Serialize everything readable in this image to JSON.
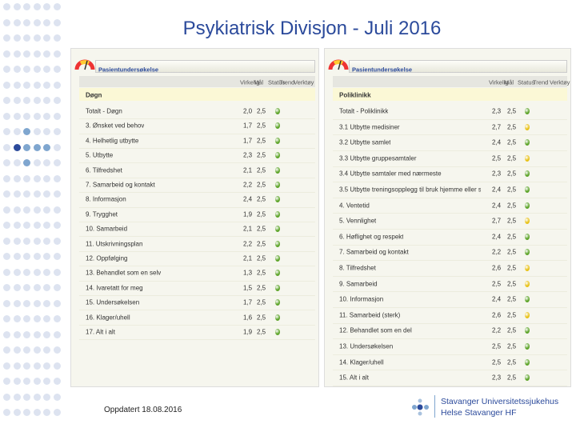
{
  "header": {
    "title": "Psykiatrisk Divisjon -  Juli 2016"
  },
  "panels": [
    {
      "app_title": "Pasientundersøkelse",
      "columns": [
        "Virkelig",
        "Mål",
        "Status",
        "Trend",
        "Verktøy"
      ],
      "section": "Døgn",
      "rows": [
        {
          "label": "Totalt - Døgn",
          "actual": "2,0",
          "target": "2,5",
          "status": "green"
        },
        {
          "label": "3. Ønsket ved behov",
          "actual": "1,7",
          "target": "2,5",
          "status": "green"
        },
        {
          "label": "4. Helhetlig utbytte",
          "actual": "1,7",
          "target": "2,5",
          "status": "green"
        },
        {
          "label": "5. Utbytte",
          "actual": "2,3",
          "target": "2,5",
          "status": "green"
        },
        {
          "label": "6. Tilfredshet",
          "actual": "2,1",
          "target": "2,5",
          "status": "green"
        },
        {
          "label": "7. Samarbeid og kontakt",
          "actual": "2,2",
          "target": "2,5",
          "status": "green"
        },
        {
          "label": "8. Informasjon",
          "actual": "2,4",
          "target": "2,5",
          "status": "green"
        },
        {
          "label": "9. Trygghet",
          "actual": "1,9",
          "target": "2,5",
          "status": "green"
        },
        {
          "label": "10. Samarbeid",
          "actual": "2,1",
          "target": "2,5",
          "status": "green"
        },
        {
          "label": "11. Utskrivningsplan",
          "actual": "2,2",
          "target": "2,5",
          "status": "green"
        },
        {
          "label": "12. Oppfølging",
          "actual": "2,1",
          "target": "2,5",
          "status": "green"
        },
        {
          "label": "13. Behandlet som en selv",
          "actual": "1,3",
          "target": "2,5",
          "status": "green"
        },
        {
          "label": "14. Ivaretatt for meg",
          "actual": "1,5",
          "target": "2,5",
          "status": "green"
        },
        {
          "label": "15. Undersøkelsen",
          "actual": "1,7",
          "target": "2,5",
          "status": "green"
        },
        {
          "label": "16. Klager/uhell",
          "actual": "1,6",
          "target": "2,5",
          "status": "green"
        },
        {
          "label": "17. Alt i alt",
          "actual": "1,9",
          "target": "2,5",
          "status": "green"
        }
      ]
    },
    {
      "app_title": "Pasientundersøkelse",
      "columns": [
        "Virkelig",
        "Mål",
        "Status",
        "Trend",
        "Verktøy"
      ],
      "section": "Poliklinikk",
      "rows": [
        {
          "label": "Totalt - Poliklinikk",
          "actual": "2,3",
          "target": "2,5",
          "status": "green"
        },
        {
          "label": "3.1 Utbytte medisiner",
          "actual": "2,7",
          "target": "2,5",
          "status": "yellow"
        },
        {
          "label": "3.2 Utbytte samlet",
          "actual": "2,4",
          "target": "2,5",
          "status": "green"
        },
        {
          "label": "3.3 Utbytte gruppesamtaler",
          "actual": "2,5",
          "target": "2,5",
          "status": "yellow"
        },
        {
          "label": "3.4 Utbytte samtaler med nærmeste",
          "actual": "2,3",
          "target": "2,5",
          "status": "green"
        },
        {
          "label": "3.5 Utbytte treningsopplegg til bruk hjemme eller skole",
          "actual": "2,4",
          "target": "2,5",
          "status": "green"
        },
        {
          "label": "4. Ventetid",
          "actual": "2,4",
          "target": "2,5",
          "status": "green"
        },
        {
          "label": "5. Vennlighet",
          "actual": "2,7",
          "target": "2,5",
          "status": "yellow"
        },
        {
          "label": "6. Høflighet og respekt",
          "actual": "2,4",
          "target": "2,5",
          "status": "green"
        },
        {
          "label": "7. Samarbeid og kontakt",
          "actual": "2,2",
          "target": "2,5",
          "status": "green"
        },
        {
          "label": "8. Tilfredshet",
          "actual": "2,6",
          "target": "2,5",
          "status": "yellow"
        },
        {
          "label": "9. Samarbeid",
          "actual": "2,5",
          "target": "2,5",
          "status": "yellow"
        },
        {
          "label": "10. Informasjon",
          "actual": "2,4",
          "target": "2,5",
          "status": "green"
        },
        {
          "label": "11. Samarbeid (sterk)",
          "actual": "2,6",
          "target": "2,5",
          "status": "yellow"
        },
        {
          "label": "12. Behandlet som en del",
          "actual": "2,2",
          "target": "2,5",
          "status": "green"
        },
        {
          "label": "13. Undersøkelsen",
          "actual": "2,5",
          "target": "2,5",
          "status": "green"
        },
        {
          "label": "14. Klager/uhell",
          "actual": "2,5",
          "target": "2,5",
          "status": "green"
        },
        {
          "label": "15. Alt i alt",
          "actual": "2,3",
          "target": "2,5",
          "status": "green"
        }
      ]
    }
  ],
  "footer": {
    "updated": "Oppdatert 18.08.2016"
  },
  "logo": {
    "line1": "Stavanger Universitetssjukehus",
    "line2": "Helse Stavanger HF"
  }
}
